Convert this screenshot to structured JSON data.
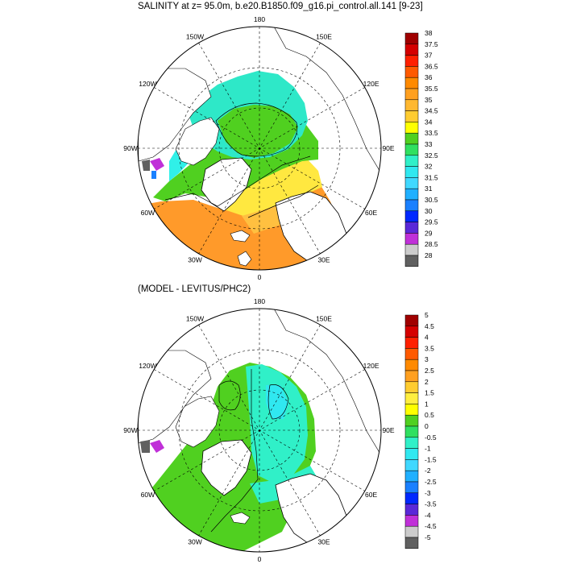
{
  "panels": [
    {
      "title": "SALINITY at z=  95.0m, b.e20.B1850.f09_g16.pi_control.all.141 [9-23]",
      "lon_labels": [
        "180",
        "150E",
        "120E",
        "90E",
        "60E",
        "30E",
        "0",
        "30W",
        "60W",
        "90W",
        "120W",
        "150W"
      ],
      "colorbar_labels": [
        "38",
        "37.5",
        "37",
        "36.5",
        "36",
        "35.5",
        "35",
        "34.5",
        "34",
        "33.5",
        "33",
        "32.5",
        "32",
        "31.5",
        "31",
        "30.5",
        "30",
        "29.5",
        "29",
        "28.5",
        "28"
      ],
      "colorbar_colors": [
        "#a00000",
        "#d50000",
        "#ff2000",
        "#ff5a00",
        "#ff8a00",
        "#ffa020",
        "#ffb830",
        "#ffcc30",
        "#ffff00",
        "#50d020",
        "#30e060",
        "#30f0c8",
        "#30e8f0",
        "#40d8ff",
        "#20b0ff",
        "#1a80ff",
        "#0028ff",
        "#5a28d8",
        "#c030d8",
        "#cccccc",
        "#606060"
      ]
    },
    {
      "title": "(MODEL - LEVITUS/PHC2)",
      "lon_labels": [
        "180",
        "150E",
        "120E",
        "90E",
        "60E",
        "30E",
        "0",
        "30W",
        "60W",
        "90W",
        "120W",
        "150W"
      ],
      "colorbar_labels": [
        "5",
        "4.5",
        "4",
        "3.5",
        "3",
        "2.5",
        "2",
        "1.5",
        "1",
        "0.5",
        "0",
        "-0.5",
        "-1",
        "-1.5",
        "-2",
        "-2.5",
        "-3",
        "-3.5",
        "-4",
        "-4.5",
        "-5"
      ],
      "colorbar_colors": [
        "#a00000",
        "#d50000",
        "#ff2000",
        "#ff5a00",
        "#ff8a00",
        "#ffa020",
        "#ffcc30",
        "#ffee40",
        "#ffff00",
        "#50d020",
        "#30e060",
        "#30f0c8",
        "#30e8f0",
        "#40d8ff",
        "#20b0ff",
        "#1a80ff",
        "#0028ff",
        "#5a28d8",
        "#c030d8",
        "#cccccc",
        "#606060"
      ]
    }
  ]
}
